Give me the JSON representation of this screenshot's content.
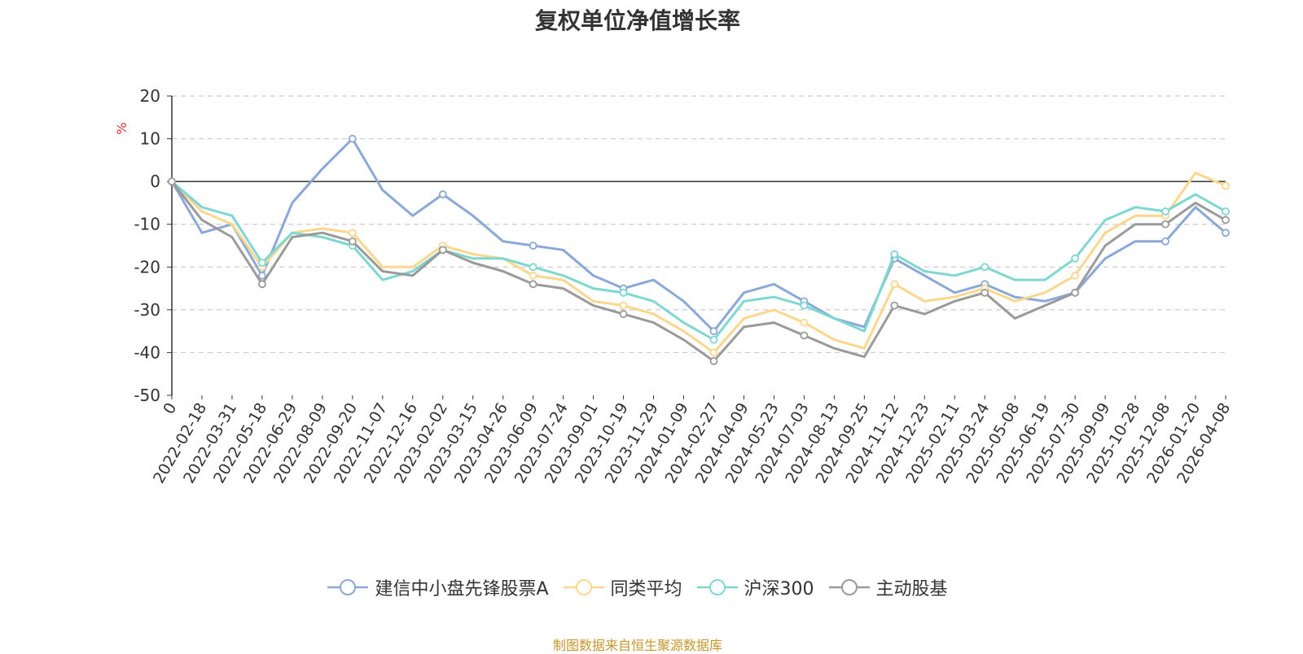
{
  "chart_data": {
    "type": "line",
    "title": "复权单位净值增长率",
    "ylabel": "%",
    "ylim": [
      -50,
      20
    ],
    "yticks": [
      20,
      10,
      0,
      -10,
      -20,
      -30,
      -40,
      -50
    ],
    "grid": true,
    "legend_position": "bottom",
    "categories": [
      "0",
      "2022-02-18",
      "2022-03-31",
      "2022-05-18",
      "2022-06-29",
      "2022-08-09",
      "2022-09-20",
      "2022-11-07",
      "2022-12-16",
      "2023-02-02",
      "2023-03-15",
      "2023-04-26",
      "2023-06-09",
      "2023-07-24",
      "2023-09-01",
      "2023-10-19",
      "2023-11-29",
      "2024-01-09",
      "2024-02-27",
      "2024-04-09",
      "2024-05-23",
      "2024-07-03",
      "2024-08-13",
      "2024-09-25",
      "2024-11-12",
      "2024-12-23",
      "2025-02-11",
      "2025-03-24",
      "2025-05-08",
      "2025-06-19",
      "2025-07-30",
      "2025-09-09",
      "2025-10-28",
      "2025-12-08",
      "2026-01-20",
      "2026-04-08"
    ],
    "series": [
      {
        "name": "建信中小盘先锋股票A",
        "color": "#8aa8d8",
        "values": [
          0,
          -12,
          -10,
          -22,
          -5,
          3,
          10,
          -2,
          -8,
          -3,
          -8,
          -14,
          -15,
          -16,
          -22,
          -25,
          -23,
          -28,
          -35,
          -26,
          -24,
          -28,
          -32,
          -34,
          -18,
          -22,
          -26,
          -24,
          -27,
          -28,
          -26,
          -18,
          -14,
          -14,
          -6,
          -12
        ]
      },
      {
        "name": "同类平均",
        "color": "#fbd78e",
        "values": [
          0,
          -7,
          -10,
          -20,
          -12,
          -11,
          -12,
          -20,
          -20,
          -15,
          -17,
          -18,
          -22,
          -23,
          -28,
          -29,
          -31,
          -35,
          -40,
          -32,
          -30,
          -33,
          -37,
          -39,
          -24,
          -28,
          -27,
          -25,
          -28,
          -26,
          -22,
          -12,
          -8,
          -8,
          2,
          -1
        ]
      },
      {
        "name": "沪深300",
        "color": "#7ed8d1",
        "values": [
          0,
          -6,
          -8,
          -19,
          -12,
          -13,
          -15,
          -23,
          -21,
          -16,
          -18,
          -18,
          -20,
          -22,
          -25,
          -26,
          -28,
          -33,
          -37,
          -28,
          -27,
          -29,
          -32,
          -35,
          -17,
          -21,
          -22,
          -20,
          -23,
          -23,
          -18,
          -9,
          -6,
          -7,
          -3,
          -7
        ]
      },
      {
        "name": "主动股基",
        "color": "#9a9a9a",
        "values": [
          0,
          -9,
          -13,
          -24,
          -13,
          -12,
          -14,
          -21,
          -22,
          -16,
          -19,
          -21,
          -24,
          -25,
          -29,
          -31,
          -33,
          -37,
          -42,
          -34,
          -33,
          -36,
          -39,
          -41,
          -29,
          -31,
          -28,
          -26,
          -32,
          -29,
          -26,
          -15,
          -10,
          -10,
          -5,
          -9
        ]
      }
    ]
  },
  "source_note": "制图数据来自恒生聚源数据库"
}
